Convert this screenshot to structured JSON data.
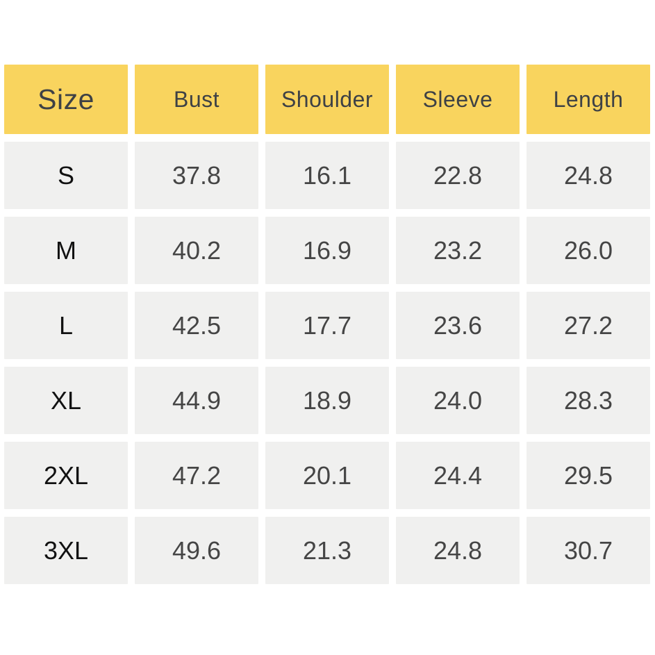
{
  "chart_data": {
    "type": "table",
    "columns": [
      "Size",
      "Bust",
      "Shoulder",
      "Sleeve",
      "Length"
    ],
    "rows": [
      [
        "S",
        "37.8",
        "16.1",
        "22.8",
        "24.8"
      ],
      [
        "M",
        "40.2",
        "16.9",
        "23.2",
        "26.0"
      ],
      [
        "L",
        "42.5",
        "17.7",
        "23.6",
        "27.2"
      ],
      [
        "XL",
        "44.9",
        "18.9",
        "24.0",
        "28.3"
      ],
      [
        "2XL",
        "47.2",
        "20.1",
        "24.4",
        "29.5"
      ],
      [
        "3XL",
        "49.6",
        "21.3",
        "24.8",
        "30.7"
      ]
    ]
  },
  "colors": {
    "page_bg": "#FFFFFF",
    "header_bg": "#F9D45E",
    "cell_bg": "#F0F0EF",
    "header_text": "#3E4145",
    "size_text": "#111111",
    "value_text": "#454545"
  }
}
